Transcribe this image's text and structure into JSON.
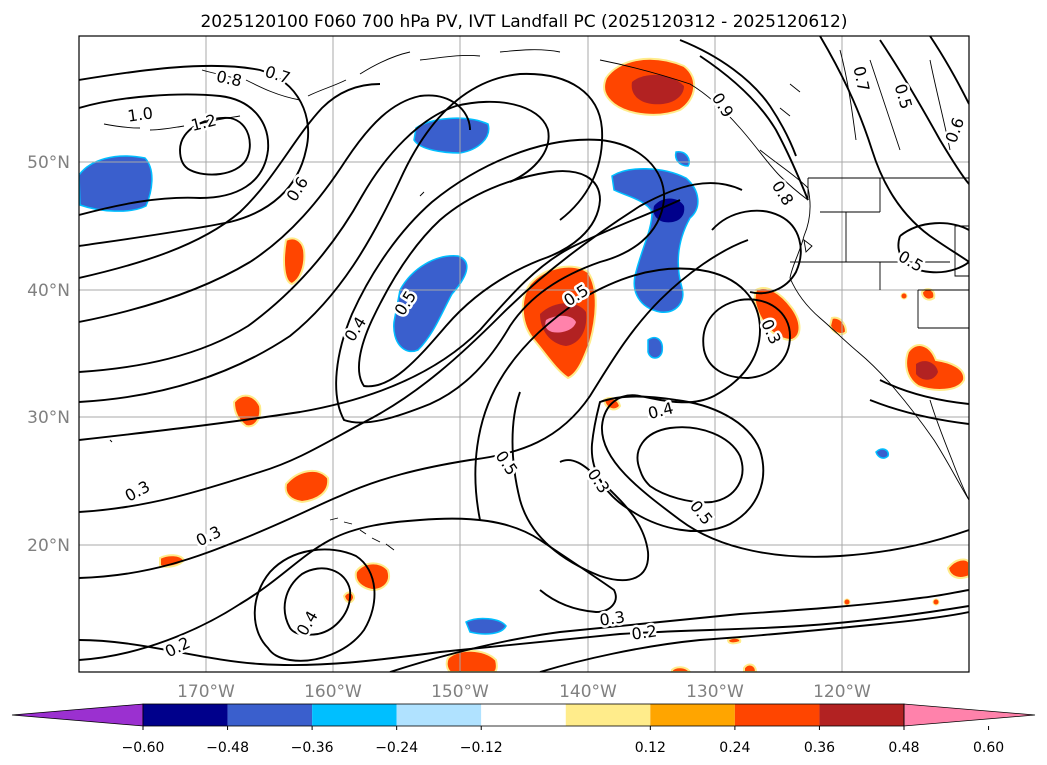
{
  "title": "2025120100 F060 700 hPa PV, IVT Landfall PC (2025120312 - 2025120612)",
  "lat_labels": [
    "50°N",
    "40°N",
    "30°N",
    "20°N"
  ],
  "lon_labels": [
    "170°W",
    "160°W",
    "150°W",
    "140°W",
    "130°W",
    "120°W"
  ],
  "contour_labels": [
    "1.0",
    "0.8",
    "0.7",
    "1.2",
    "0.6",
    "0.4",
    "0.5",
    "0.5",
    "0.3",
    "0.3",
    "0.2",
    "0.4",
    "0.4",
    "0.5",
    "0.3",
    "0.5",
    "0.3",
    "0.2",
    "0.7",
    "0.5",
    "0.6",
    "0.9",
    "0.8",
    "0.5",
    "0.3"
  ],
  "colorbar": {
    "tick_labels": [
      "−0.60",
      "−0.48",
      "−0.36",
      "−0.24",
      "−0.12",
      "0.12",
      "0.24",
      "0.36",
      "0.48",
      "0.60"
    ],
    "colors": [
      "#9b30d0",
      "#00008b",
      "#3a5fcd",
      "#00bfff",
      "#b0e2ff",
      "#ffffff",
      "#ffec8b",
      "#ffa500",
      "#ff4500",
      "#b22222",
      "#ff82ab"
    ]
  }
}
